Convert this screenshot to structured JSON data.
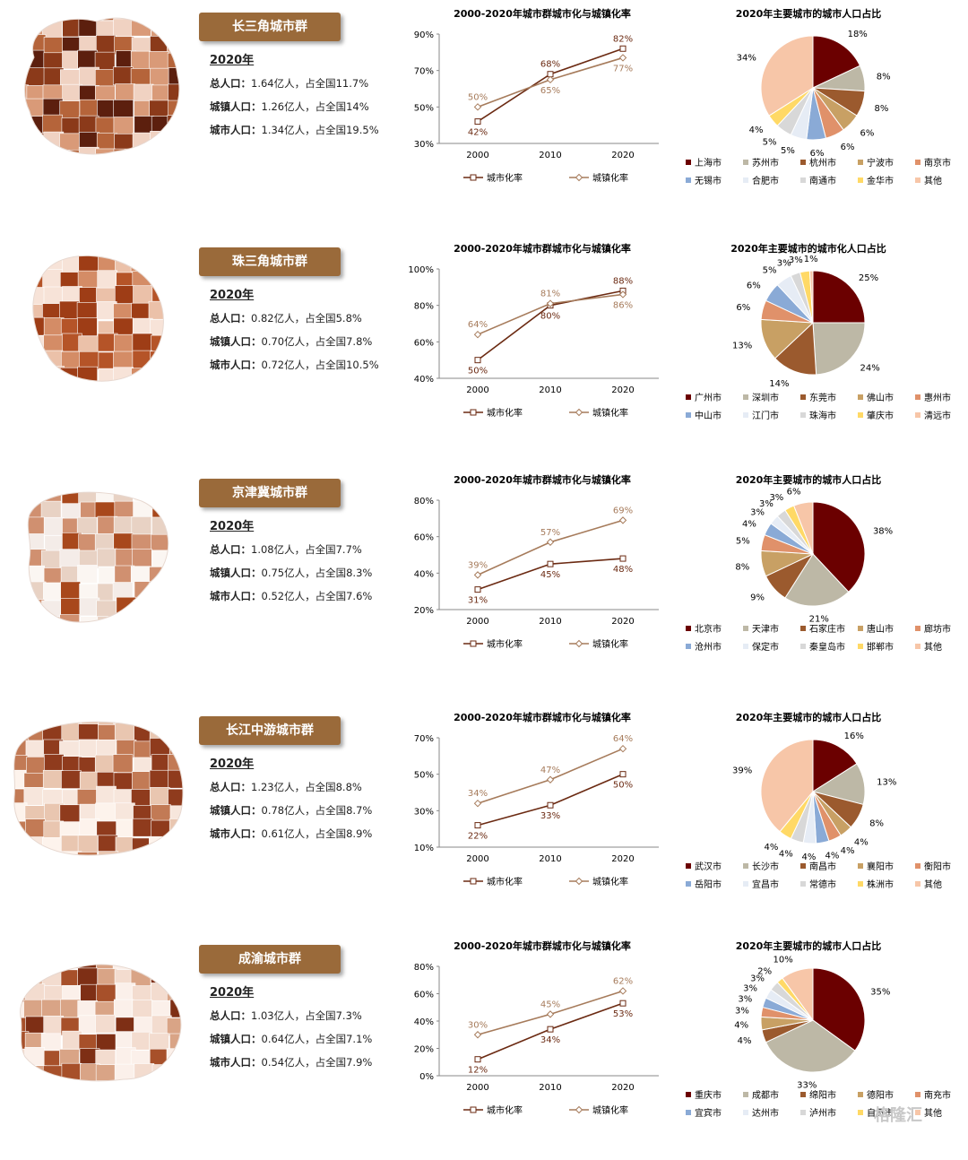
{
  "clusters": [
    {
      "name": "长三角城市群",
      "year_label": "2020年",
      "stats": [
        {
          "label": "总人口：",
          "value": "1.64亿人，占全国11.7%"
        },
        {
          "label": "城镇人口：",
          "value": "1.26亿人，占全国14%"
        },
        {
          "label": "城市人口：",
          "value": "1.34亿人，占全国19.5%"
        }
      ],
      "map_colors": [
        "#8b3a1a",
        "#b5643a",
        "#d99a78",
        "#f0d2c2",
        "#5c1f0e"
      ]
    },
    {
      "name": "珠三角城市群",
      "year_label": "2020年",
      "stats": [
        {
          "label": "总人口：",
          "value": "0.82亿人，占全国5.8%"
        },
        {
          "label": "城镇人口：",
          "value": "0.70亿人，占全国7.8%"
        },
        {
          "label": "城市人口：",
          "value": "0.72亿人，占全国10.5%"
        }
      ],
      "map_colors": [
        "#9e3d16",
        "#d48c66",
        "#ebc1a9",
        "#f7e3d8",
        "#b55428"
      ]
    },
    {
      "name": "京津冀城市群",
      "year_label": "2020年",
      "stats": [
        {
          "label": "总人口：",
          "value": "1.08亿人，占全国7.7%"
        },
        {
          "label": "城镇人口：",
          "value": "0.75亿人，占全国8.3%"
        },
        {
          "label": "城市人口：",
          "value": "0.52亿人，占全国7.6%"
        }
      ],
      "map_colors": [
        "#f4ece8",
        "#e8d2c4",
        "#a8481c",
        "#d09070",
        "#fbf6f2"
      ]
    },
    {
      "name": "长江中游城市群",
      "year_label": "2020年",
      "stats": [
        {
          "label": "总人口：",
          "value": "1.23亿人，占全国8.8%"
        },
        {
          "label": "城镇人口：",
          "value": "0.78亿人，占全国8.7%"
        },
        {
          "label": "城市人口：",
          "value": "0.61亿人，占全国8.9%"
        }
      ],
      "map_colors": [
        "#e9c6b0",
        "#f7e6dc",
        "#c27a55",
        "#8f3b1d",
        "#fdf3ec"
      ]
    },
    {
      "name": "成渝城市群",
      "year_label": "2020年",
      "stats": [
        {
          "label": "总人口：",
          "value": "1.03亿人，占全国7.3%"
        },
        {
          "label": "城镇人口：",
          "value": "0.64亿人，占全国7.1%"
        },
        {
          "label": "城市人口：",
          "value": "0.54亿人，占全国7.9%"
        }
      ],
      "map_colors": [
        "#d9a486",
        "#f3dccf",
        "#a7502a",
        "#fbf0ea",
        "#7e2f15"
      ]
    }
  ],
  "chart_data": [
    {
      "type": "line",
      "title": "2000-2020年城市群城市化与城镇化率",
      "categories": [
        "2000",
        "2010",
        "2020"
      ],
      "ylim": [
        30,
        90
      ],
      "yticks": [
        "30%",
        "50%",
        "70%",
        "90%"
      ],
      "ytick_values": [
        30,
        50,
        70,
        90
      ],
      "series": [
        {
          "name": "城市化率",
          "values": [
            42,
            68,
            82
          ],
          "labels": [
            "42%",
            "68%",
            "82%"
          ],
          "color": "#6b2a12",
          "marker": "square"
        },
        {
          "name": "城镇化率",
          "values": [
            50,
            65,
            77
          ],
          "labels": [
            "50%",
            "65%",
            "77%"
          ],
          "color": "#a67b5b",
          "marker": "diamond"
        }
      ]
    },
    {
      "type": "pie",
      "title": "2020年主要城市的城市人口占比",
      "slices": [
        {
          "name": "上海市",
          "value": 18,
          "label": "18%",
          "color": "#6b0000"
        },
        {
          "name": "苏州市",
          "value": 8,
          "label": "8%",
          "color": "#bdb8a6"
        },
        {
          "name": "杭州市",
          "value": 8,
          "label": "8%",
          "color": "#9b5a2e"
        },
        {
          "name": "宁波市",
          "value": 6,
          "label": "6%",
          "color": "#c8a064"
        },
        {
          "name": "南京市",
          "value": 6,
          "label": "6%",
          "color": "#e0916a"
        },
        {
          "name": "无锡市",
          "value": 6,
          "label": "6%",
          "color": "#8aaad6"
        },
        {
          "name": "合肥市",
          "value": 5,
          "label": "5%",
          "color": "#e6ecf5"
        },
        {
          "name": "南通市",
          "value": 5,
          "label": "5%",
          "color": "#d8d8d8"
        },
        {
          "name": "金华市",
          "value": 4,
          "label": "4%",
          "color": "#ffd966"
        },
        {
          "name": "其他",
          "value": 34,
          "label": "34%",
          "color": "#f7c6a8"
        }
      ]
    },
    {
      "type": "line",
      "title": "2000-2020年城市群城市化与城镇化率",
      "categories": [
        "2000",
        "2010",
        "2020"
      ],
      "ylim": [
        40,
        100
      ],
      "yticks": [
        "40%",
        "60%",
        "80%",
        "100%"
      ],
      "ytick_values": [
        40,
        60,
        80,
        100
      ],
      "series": [
        {
          "name": "城市化率",
          "values": [
            50,
            80,
            88
          ],
          "labels": [
            "50%",
            "80%",
            "88%"
          ],
          "color": "#6b2a12",
          "marker": "square"
        },
        {
          "name": "城镇化率",
          "values": [
            64,
            81,
            86
          ],
          "labels": [
            "64%",
            "81%",
            "86%"
          ],
          "color": "#a67b5b",
          "marker": "diamond"
        }
      ]
    },
    {
      "type": "pie",
      "title": "2020年主要城市的城市化人口占比",
      "slices": [
        {
          "name": "广州市",
          "value": 25,
          "label": "25%",
          "color": "#6b0000"
        },
        {
          "name": "深圳市",
          "value": 24,
          "label": "24%",
          "color": "#bdb8a6"
        },
        {
          "name": "东莞市",
          "value": 14,
          "label": "14%",
          "color": "#9b5a2e"
        },
        {
          "name": "佛山市",
          "value": 13,
          "label": "13%",
          "color": "#c8a064"
        },
        {
          "name": "惠州市",
          "value": 6,
          "label": "6%",
          "color": "#e0916a"
        },
        {
          "name": "中山市",
          "value": 6,
          "label": "6%",
          "color": "#8aaad6"
        },
        {
          "name": "江门市",
          "value": 5,
          "label": "5%",
          "color": "#e6ecf5"
        },
        {
          "name": "珠海市",
          "value": 3,
          "label": "3%",
          "color": "#d8d8d8"
        },
        {
          "name": "肇庆市",
          "value": 3,
          "label": "3%",
          "color": "#ffd966"
        },
        {
          "name": "清远市",
          "value": 1,
          "label": "1%",
          "color": "#f7c6a8"
        }
      ]
    },
    {
      "type": "line",
      "title": "2000-2020年城市群城市化与城镇化率",
      "categories": [
        "2000",
        "2010",
        "2020"
      ],
      "ylim": [
        20,
        80
      ],
      "yticks": [
        "20%",
        "40%",
        "60%",
        "80%"
      ],
      "ytick_values": [
        20,
        40,
        60,
        80
      ],
      "series": [
        {
          "name": "城市化率",
          "values": [
            31,
            45,
            48
          ],
          "labels": [
            "31%",
            "45%",
            "48%"
          ],
          "color": "#6b2a12",
          "marker": "square"
        },
        {
          "name": "城镇化率",
          "values": [
            39,
            57,
            69
          ],
          "labels": [
            "39%",
            "57%",
            "69%"
          ],
          "color": "#a67b5b",
          "marker": "diamond"
        }
      ]
    },
    {
      "type": "pie",
      "title": "2020年主要城市的城市人口占比",
      "slices": [
        {
          "name": "北京市",
          "value": 38,
          "label": "38%",
          "color": "#6b0000"
        },
        {
          "name": "天津市",
          "value": 21,
          "label": "21%",
          "color": "#bdb8a6"
        },
        {
          "name": "石家庄市",
          "value": 9,
          "label": "9%",
          "color": "#9b5a2e"
        },
        {
          "name": "唐山市",
          "value": 8,
          "label": "8%",
          "color": "#c8a064"
        },
        {
          "name": "廊坊市",
          "value": 5,
          "label": "5%",
          "color": "#e0916a"
        },
        {
          "name": "沧州市",
          "value": 4,
          "label": "4%",
          "color": "#8aaad6"
        },
        {
          "name": "保定市",
          "value": 3,
          "label": "3%",
          "color": "#e6ecf5"
        },
        {
          "name": "秦皇岛市",
          "value": 3,
          "label": "3%",
          "color": "#d8d8d8"
        },
        {
          "name": "邯郸市",
          "value": 3,
          "label": "3%",
          "color": "#ffd966"
        },
        {
          "name": "其他",
          "value": 6,
          "label": "6%",
          "color": "#f7c6a8"
        }
      ]
    },
    {
      "type": "line",
      "title": "2000-2020年城市群城市化与城镇化率",
      "categories": [
        "2000",
        "2010",
        "2020"
      ],
      "ylim": [
        10,
        70
      ],
      "yticks": [
        "10%",
        "30%",
        "50%",
        "70%"
      ],
      "ytick_values": [
        10,
        30,
        50,
        70
      ],
      "series": [
        {
          "name": "城市化率",
          "values": [
            22,
            33,
            50
          ],
          "labels": [
            "22%",
            "33%",
            "50%"
          ],
          "color": "#6b2a12",
          "marker": "square"
        },
        {
          "name": "城镇化率",
          "values": [
            34,
            47,
            64
          ],
          "labels": [
            "34%",
            "47%",
            "64%"
          ],
          "color": "#a67b5b",
          "marker": "diamond"
        }
      ]
    },
    {
      "type": "pie",
      "title": "2020年主要城市的城市人口占比",
      "slices": [
        {
          "name": "武汉市",
          "value": 16,
          "label": "16%",
          "color": "#6b0000"
        },
        {
          "name": "长沙市",
          "value": 13,
          "label": "13%",
          "color": "#bdb8a6"
        },
        {
          "name": "南昌市",
          "value": 8,
          "label": "8%",
          "color": "#9b5a2e"
        },
        {
          "name": "襄阳市",
          "value": 4,
          "label": "4%",
          "color": "#c8a064"
        },
        {
          "name": "衡阳市",
          "value": 4,
          "label": "4%",
          "color": "#e0916a"
        },
        {
          "name": "岳阳市",
          "value": 4,
          "label": "4%",
          "color": "#8aaad6"
        },
        {
          "name": "宜昌市",
          "value": 4,
          "label": "4%",
          "color": "#e6ecf5"
        },
        {
          "name": "常德市",
          "value": 4,
          "label": "4%",
          "color": "#d8d8d8"
        },
        {
          "name": "株洲市",
          "value": 4,
          "label": "4%",
          "color": "#ffd966"
        },
        {
          "name": "其他",
          "value": 39,
          "label": "39%",
          "color": "#f7c6a8"
        }
      ]
    },
    {
      "type": "line",
      "title": "2000-2020年城市群城市化与城镇化率",
      "categories": [
        "2000",
        "2010",
        "2020"
      ],
      "ylim": [
        0,
        80
      ],
      "yticks": [
        "0%",
        "20%",
        "40%",
        "60%",
        "80%"
      ],
      "ytick_values": [
        0,
        20,
        40,
        60,
        80
      ],
      "series": [
        {
          "name": "城市化率",
          "values": [
            12,
            34,
            53
          ],
          "labels": [
            "12%",
            "34%",
            "53%"
          ],
          "color": "#6b2a12",
          "marker": "square"
        },
        {
          "name": "城镇化率",
          "values": [
            30,
            45,
            62
          ],
          "labels": [
            "30%",
            "45%",
            "62%"
          ],
          "color": "#a67b5b",
          "marker": "diamond"
        }
      ]
    },
    {
      "type": "pie",
      "title": "2020年主要城市的城市人口占比",
      "slices": [
        {
          "name": "重庆市",
          "value": 35,
          "label": "35%",
          "color": "#6b0000"
        },
        {
          "name": "成都市",
          "value": 33,
          "label": "33%",
          "color": "#bdb8a6"
        },
        {
          "name": "绵阳市",
          "value": 4,
          "label": "4%",
          "color": "#9b5a2e"
        },
        {
          "name": "德阳市",
          "value": 4,
          "label": "4%",
          "color": "#c8a064"
        },
        {
          "name": "南充市",
          "value": 3,
          "label": "3%",
          "color": "#e0916a"
        },
        {
          "name": "宜宾市",
          "value": 3,
          "label": "3%",
          "color": "#8aaad6"
        },
        {
          "name": "达州市",
          "value": 3,
          "label": "3%",
          "color": "#e6ecf5"
        },
        {
          "name": "泸州市",
          "value": 3,
          "label": "3%",
          "color": "#d8d8d8"
        },
        {
          "name": "自贡市",
          "value": 2,
          "label": "2%",
          "color": "#ffd966"
        },
        {
          "name": "其他",
          "value": 10,
          "label": "10%",
          "color": "#f7c6a8"
        }
      ]
    }
  ],
  "watermark": "格隆汇"
}
